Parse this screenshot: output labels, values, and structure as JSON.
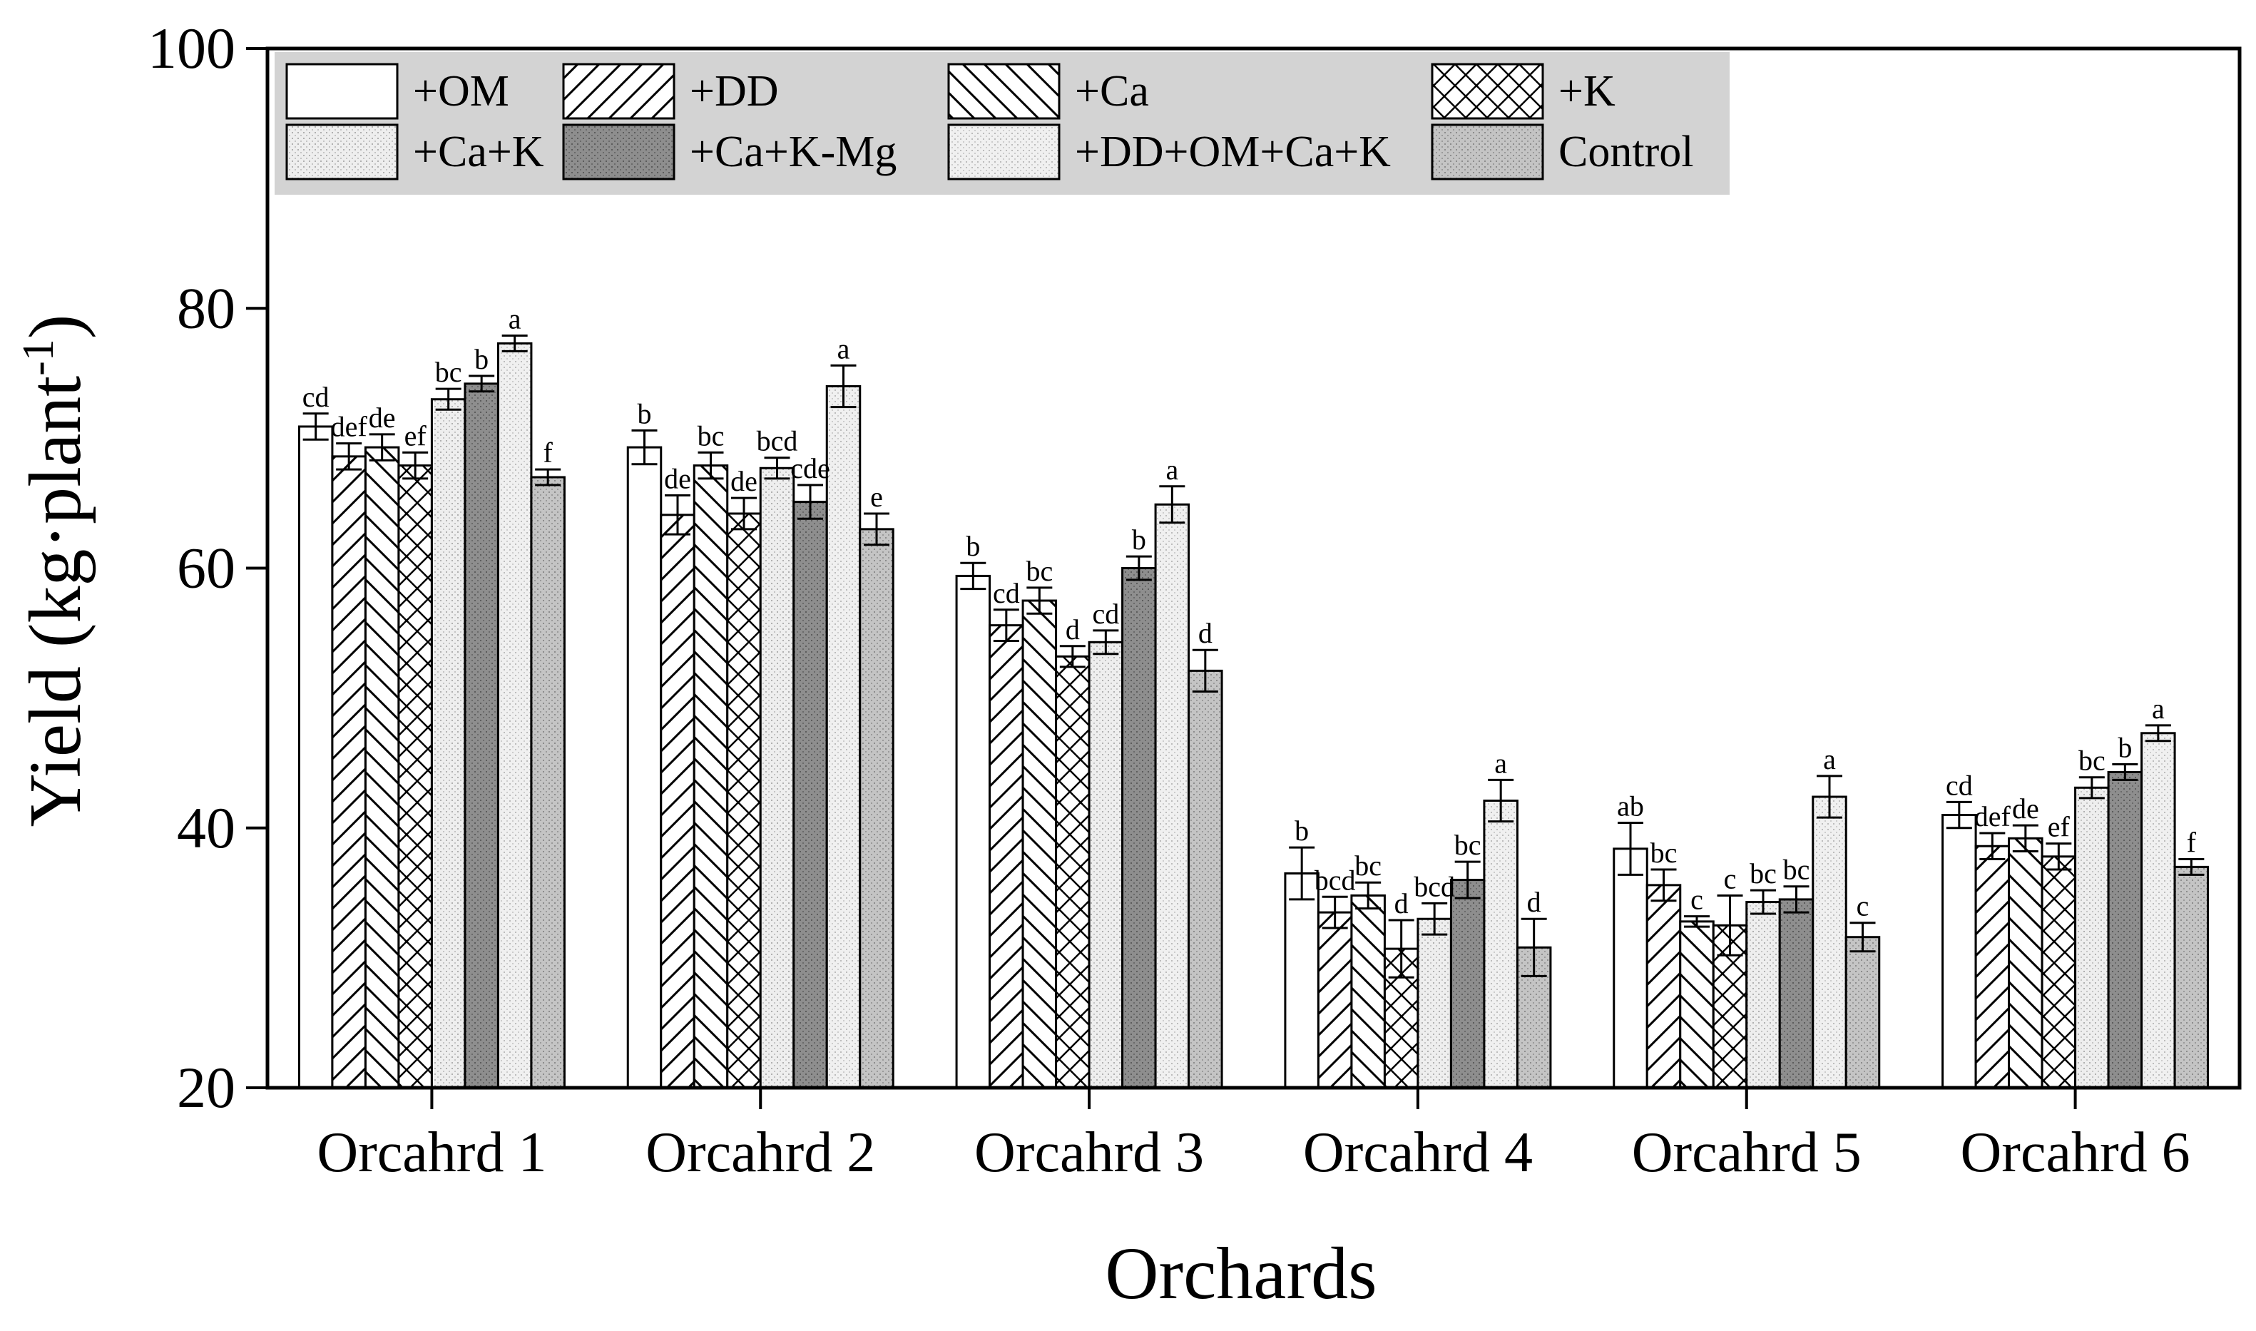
{
  "chart_data": {
    "type": "bar",
    "title": "",
    "xlabel": "Orchards",
    "ylabel": "Yield (kg·plant",
    "ylabel_sup": "-1",
    "ylabel_close": ")",
    "ylim": [
      20,
      100
    ],
    "yticks": [
      20,
      40,
      60,
      80,
      100
    ],
    "grid": false,
    "legend_position": "top-left",
    "categories": [
      "Orcahrd 1",
      "Orcahrd 2",
      "Orcahrd 3",
      "Orcahrd 4",
      "Orcahrd 5",
      "Orcahrd 6"
    ],
    "series": [
      {
        "name": "+OM",
        "pattern": "blank",
        "color": "#ffffff",
        "values": [
          70.9,
          69.3,
          59.4,
          36.5,
          38.4,
          41.0
        ],
        "errors": [
          1.0,
          1.3,
          1.0,
          2.0,
          2.0,
          1.0
        ],
        "letters": [
          "cd",
          "b",
          "b",
          "b",
          "ab",
          "cd"
        ]
      },
      {
        "name": "+DD",
        "pattern": "forward-diagonal",
        "color": "#ffffff",
        "values": [
          68.6,
          64.1,
          55.6,
          33.5,
          35.6,
          38.6
        ],
        "errors": [
          1.0,
          1.5,
          1.2,
          1.2,
          1.2,
          1.0
        ],
        "letters": [
          "def",
          "de",
          "cd",
          "bcd",
          "bc",
          "def"
        ]
      },
      {
        "name": "+Ca",
        "pattern": "back-diagonal",
        "color": "#ffffff",
        "values": [
          69.3,
          67.9,
          57.5,
          34.8,
          32.8,
          39.2
        ],
        "errors": [
          1.0,
          1.0,
          1.0,
          1.0,
          0.4,
          1.0
        ],
        "letters": [
          "de",
          "bc",
          "bc",
          "bc",
          "c",
          "de"
        ]
      },
      {
        "name": "+K",
        "pattern": "crosshatch",
        "color": "#ffffff",
        "values": [
          67.9,
          64.2,
          53.2,
          30.7,
          32.5,
          37.8
        ],
        "errors": [
          1.0,
          1.2,
          0.8,
          2.2,
          2.3,
          1.0
        ],
        "letters": [
          "ef",
          "de",
          "d",
          "d",
          "c",
          "ef"
        ]
      },
      {
        "name": "+Ca+K",
        "pattern": "light-dots",
        "color": "#e4e4e4",
        "values": [
          73.0,
          67.7,
          54.3,
          33.0,
          34.3,
          43.1
        ],
        "errors": [
          0.8,
          0.8,
          0.9,
          1.2,
          0.9,
          0.8
        ],
        "letters": [
          "bc",
          "bcd",
          "cd",
          "bcd",
          "bc",
          "bc"
        ]
      },
      {
        "name": "+Ca+K-Mg",
        "pattern": "dark-dots",
        "color": "#8a8a8a",
        "values": [
          74.2,
          65.1,
          60.0,
          36.0,
          34.5,
          44.3
        ],
        "errors": [
          0.6,
          1.3,
          0.9,
          1.4,
          1.0,
          0.6
        ],
        "letters": [
          "b",
          "cde",
          "b",
          "bc",
          "bc",
          "b"
        ]
      },
      {
        "name": "+DD+OM+Ca+K",
        "pattern": "light-dots-2",
        "color": "#e6e6e6",
        "values": [
          77.3,
          74.0,
          64.9,
          42.1,
          42.4,
          47.3
        ],
        "errors": [
          0.6,
          1.6,
          1.4,
          1.6,
          1.6,
          0.6
        ],
        "letters": [
          "a",
          "a",
          "a",
          "a",
          "a",
          "a"
        ]
      },
      {
        "name": "Control",
        "pattern": "medium-dots",
        "color": "#b8b8b8",
        "values": [
          67.0,
          63.0,
          52.1,
          30.8,
          31.6,
          37.0
        ],
        "errors": [
          0.6,
          1.2,
          1.6,
          2.2,
          1.1,
          0.6
        ],
        "letters": [
          "f",
          "e",
          "d",
          "d",
          "c",
          "f"
        ]
      }
    ]
  }
}
